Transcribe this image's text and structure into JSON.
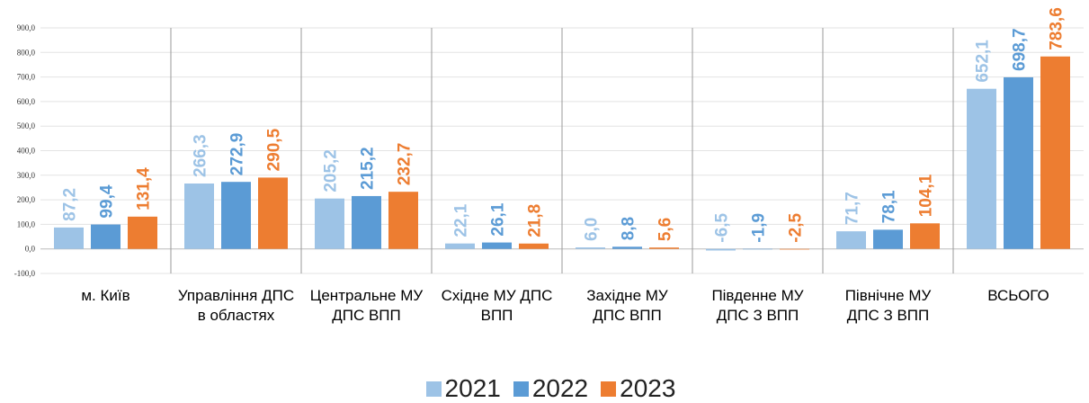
{
  "chart_data": {
    "type": "bar",
    "categories": [
      "м. Київ",
      "Управління ДПС в областях",
      "Центральне МУ ДПС ВПП",
      "Східне МУ ДПС ВПП",
      "Західне МУ ДПС ВПП",
      "Південне МУ ДПС З ВПП",
      "Північне МУ ДПС З ВПП",
      "ВСЬОГО"
    ],
    "series": [
      {
        "name": "2021",
        "color": "#9dc3e6",
        "values": [
          87.2,
          266.3,
          205.2,
          22.1,
          6.0,
          -6.5,
          71.7,
          652.1
        ],
        "value_labels": [
          "87,2",
          "266,3",
          "205,2",
          "22,1",
          "6,0",
          "-6,5",
          "71,7",
          "652,1"
        ]
      },
      {
        "name": "2022",
        "color": "#5b9bd5",
        "values": [
          99.4,
          272.9,
          215.2,
          26.1,
          8.8,
          -1.9,
          78.1,
          698.7
        ],
        "value_labels": [
          "99,4",
          "272,9",
          "215,2",
          "26,1",
          "8,8",
          "-1,9",
          "78,1",
          "698,7"
        ]
      },
      {
        "name": "2023",
        "color": "#ed7d31",
        "values": [
          131.4,
          290.5,
          232.7,
          21.8,
          5.6,
          -2.5,
          104.1,
          783.6
        ],
        "value_labels": [
          "131,4",
          "290,5",
          "232,7",
          "21,8",
          "5,6",
          "-2,5",
          "104,1",
          "783,6"
        ]
      }
    ],
    "ylim": [
      -100,
      900
    ],
    "yticks": [
      {
        "value": -100,
        "label": "-100,0"
      },
      {
        "value": 0,
        "label": "0,0"
      },
      {
        "value": 100,
        "label": "100,0"
      },
      {
        "value": 200,
        "label": "200,0"
      },
      {
        "value": 300,
        "label": "300,0"
      },
      {
        "value": 400,
        "label": "400,0"
      },
      {
        "value": 500,
        "label": "500,0"
      },
      {
        "value": 600,
        "label": "600,0"
      },
      {
        "value": 700,
        "label": "700,0"
      },
      {
        "value": 800,
        "label": "800,0"
      },
      {
        "value": 900,
        "label": "900,0"
      }
    ],
    "grid": true
  }
}
